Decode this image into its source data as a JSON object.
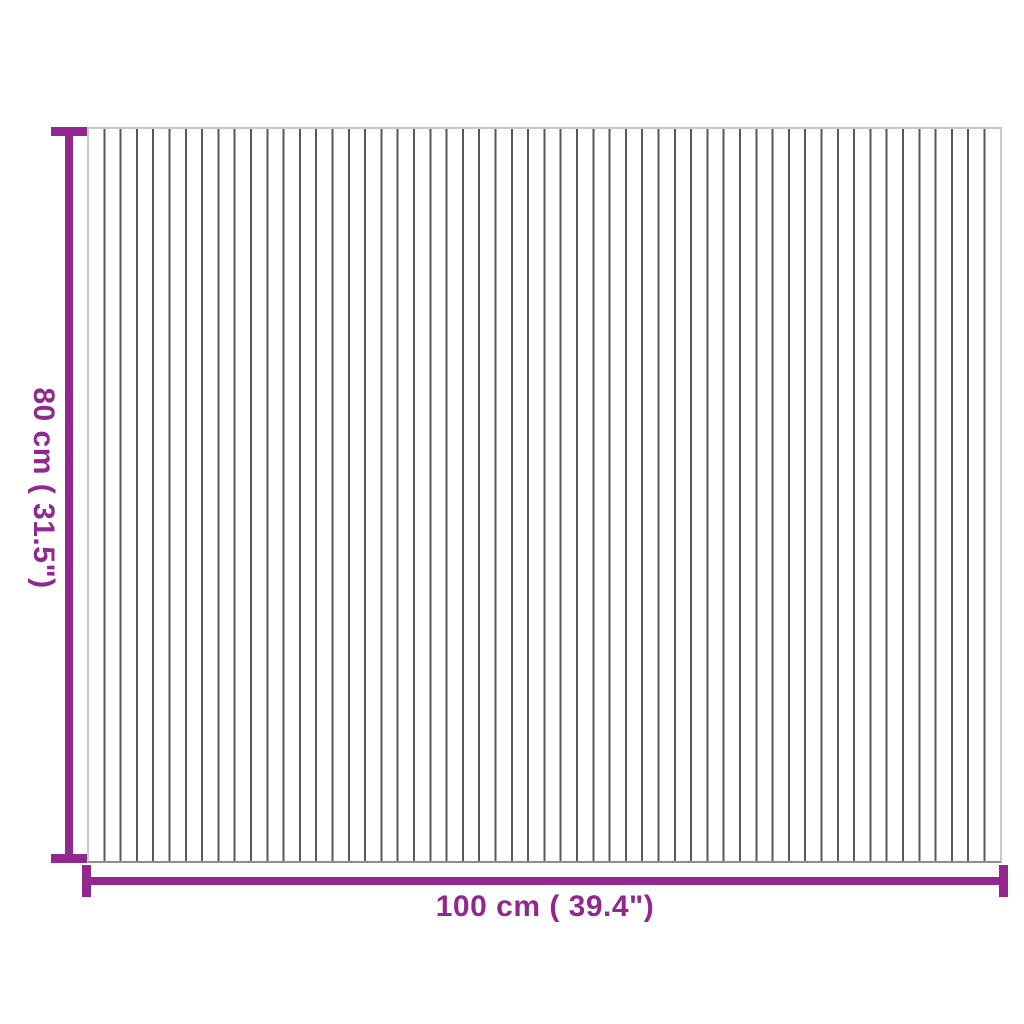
{
  "diagram": {
    "product": "slatted-mat-top-view",
    "height_label": "80 cm ( 31.5\")",
    "width_label": "100 cm ( 39.4\")",
    "colors": {
      "accent": "#92278F",
      "slat": "#58585A",
      "edge": "#C8C9CB",
      "edge_bottom": "#8E8E90",
      "background": "#FFFFFF"
    }
  }
}
